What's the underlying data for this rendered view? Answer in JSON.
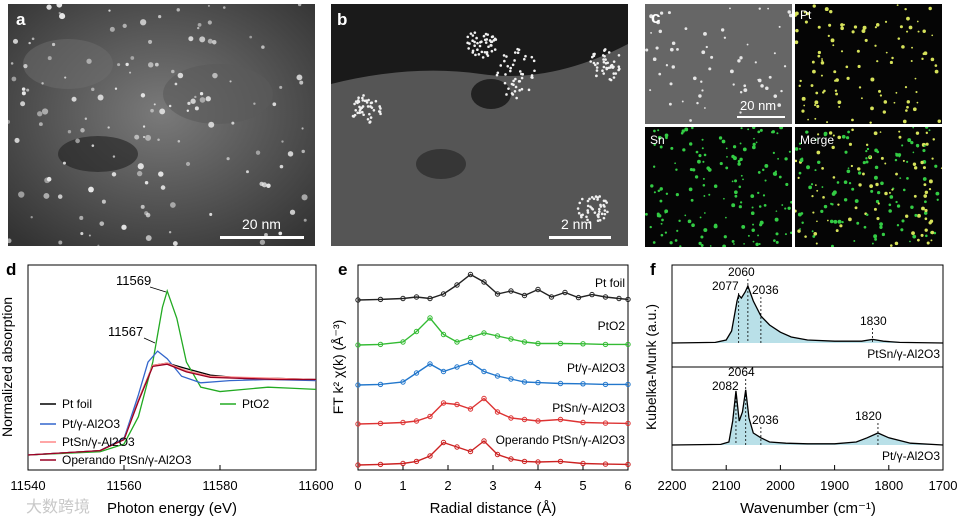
{
  "panels": {
    "a": {
      "label": "a",
      "scalebar": "20 nm"
    },
    "b": {
      "label": "b",
      "scalebar": "2 nm"
    },
    "c": {
      "label": "c",
      "scalebar": "20 nm",
      "maps": [
        "Pt",
        "Sn",
        "Merge"
      ]
    },
    "d": {
      "label": "d"
    },
    "e": {
      "label": "e"
    },
    "f": {
      "label": "f"
    }
  },
  "watermark": "大数跨境",
  "chart_data": [
    {
      "panel": "d",
      "type": "line",
      "xlabel": "Photon energy (eV)",
      "ylabel": "Normalized absorption",
      "xlim": [
        11540,
        11600
      ],
      "x_ticks": [
        "11540",
        "11560",
        "11580",
        "11600"
      ],
      "annotations": [
        "11569",
        "11567"
      ],
      "legend": [
        "Pt foil",
        "PtO2",
        "Pt/γ-Al2O3",
        "PtSn/γ-Al2O3",
        "Operando PtSn/γ-Al2O3"
      ],
      "series": [
        {
          "name": "Pt foil",
          "color": "#000000",
          "x": [
            11540,
            11555,
            11560,
            11563,
            11566,
            11569,
            11573,
            11578,
            11585,
            11592,
            11600
          ],
          "y": [
            0.0,
            0.04,
            0.15,
            0.5,
            0.82,
            0.84,
            0.79,
            0.73,
            0.7,
            0.7,
            0.69
          ]
        },
        {
          "name": "PtO2",
          "color": "#22aa22",
          "x": [
            11540,
            11555,
            11560,
            11563,
            11566,
            11568,
            11569,
            11571,
            11573,
            11576,
            11580,
            11585,
            11590,
            11595,
            11600
          ],
          "y": [
            0.0,
            0.03,
            0.1,
            0.35,
            0.85,
            1.35,
            1.5,
            1.25,
            0.85,
            0.62,
            0.58,
            0.6,
            0.62,
            0.61,
            0.6
          ]
        },
        {
          "name": "Pt/γ-Al2O3",
          "color": "#3366cc",
          "x": [
            11540,
            11555,
            11560,
            11563,
            11565,
            11567,
            11569,
            11572,
            11576,
            11582,
            11590,
            11600
          ],
          "y": [
            0.0,
            0.04,
            0.15,
            0.55,
            0.85,
            0.95,
            0.88,
            0.72,
            0.66,
            0.68,
            0.69,
            0.68
          ]
        },
        {
          "name": "PtSn/γ-Al2O3",
          "color": "#ff8888",
          "x": [
            11540,
            11555,
            11560,
            11563,
            11566,
            11569,
            11573,
            11578,
            11585,
            11592,
            11600
          ],
          "y": [
            0.0,
            0.04,
            0.14,
            0.5,
            0.82,
            0.84,
            0.77,
            0.72,
            0.71,
            0.7,
            0.69
          ]
        },
        {
          "name": "Operando PtSn/γ-Al2O3",
          "color": "#990022",
          "x": [
            11540,
            11555,
            11560,
            11563,
            11566,
            11569,
            11573,
            11578,
            11585,
            11592,
            11600
          ],
          "y": [
            0.0,
            0.04,
            0.14,
            0.49,
            0.81,
            0.83,
            0.76,
            0.71,
            0.7,
            0.69,
            0.69
          ]
        }
      ]
    },
    {
      "panel": "e",
      "type": "line",
      "xlabel": "Radial distance (Å)",
      "ylabel": "FT k² χ(k) (Å⁻³)",
      "xlim": [
        0,
        6
      ],
      "x_ticks": [
        "0",
        "1",
        "2",
        "3",
        "4",
        "5",
        "6"
      ],
      "series": [
        {
          "name": "Pt foil",
          "color": "#222222",
          "offset": 4,
          "x": [
            0,
            0.5,
            1.0,
            1.3,
            1.6,
            1.9,
            2.2,
            2.5,
            2.8,
            3.1,
            3.4,
            3.7,
            4.0,
            4.3,
            4.6,
            4.9,
            5.2,
            5.5,
            5.8,
            6.0
          ],
          "y": [
            0.0,
            0.02,
            0.05,
            0.1,
            0.05,
            0.2,
            0.5,
            0.85,
            0.6,
            0.2,
            0.3,
            0.15,
            0.35,
            0.1,
            0.25,
            0.08,
            0.18,
            0.1,
            0.05,
            0.02
          ]
        },
        {
          "name": "PtO2",
          "color": "#33bb33",
          "offset": 3,
          "x": [
            0,
            0.5,
            1.0,
            1.3,
            1.6,
            1.9,
            2.2,
            2.5,
            2.8,
            3.1,
            3.4,
            3.7,
            4.0,
            4.5,
            5.0,
            5.5,
            6.0
          ],
          "y": [
            0.0,
            0.02,
            0.1,
            0.45,
            0.9,
            0.35,
            0.1,
            0.25,
            0.4,
            0.3,
            0.2,
            0.1,
            0.05,
            0.05,
            0.04,
            0.02,
            0.02
          ]
        },
        {
          "name": "Pt/γ-Al2O3",
          "color": "#2277cc",
          "offset": 2,
          "x": [
            0,
            0.5,
            1.0,
            1.3,
            1.6,
            1.9,
            2.2,
            2.5,
            2.8,
            3.1,
            3.4,
            3.7,
            4.0,
            4.5,
            5.0,
            5.5,
            6.0
          ],
          "y": [
            0.0,
            0.02,
            0.1,
            0.4,
            0.7,
            0.45,
            0.6,
            0.75,
            0.45,
            0.3,
            0.2,
            0.1,
            0.08,
            0.05,
            0.04,
            0.02,
            0.02
          ]
        },
        {
          "name": "PtSn/γ-Al2O3",
          "color": "#dd3333",
          "offset": 1,
          "x": [
            0,
            0.5,
            1.0,
            1.3,
            1.6,
            1.9,
            2.2,
            2.5,
            2.8,
            3.1,
            3.4,
            3.7,
            4.0,
            4.5,
            5.0,
            5.5,
            6.0
          ],
          "y": [
            0.0,
            0.02,
            0.05,
            0.1,
            0.25,
            0.7,
            0.65,
            0.5,
            0.85,
            0.4,
            0.2,
            0.15,
            0.1,
            0.15,
            0.05,
            0.03,
            0.02
          ]
        },
        {
          "name": "Operando PtSn/γ-Al2O3",
          "color": "#cc2222",
          "offset": 0,
          "x": [
            0,
            0.5,
            1.0,
            1.3,
            1.6,
            1.9,
            2.2,
            2.5,
            2.8,
            3.1,
            3.4,
            3.7,
            4.0,
            4.5,
            5.0,
            5.5,
            6.0
          ],
          "y": [
            0.0,
            0.02,
            0.05,
            0.12,
            0.3,
            0.75,
            0.6,
            0.45,
            0.8,
            0.35,
            0.2,
            0.12,
            0.1,
            0.12,
            0.05,
            0.03,
            0.02
          ]
        }
      ]
    },
    {
      "panel": "f",
      "type": "line",
      "xlabel": "Wavenumber (cm⁻¹)",
      "ylabel": "Kubelka-Munk (a.u.)",
      "xlim": [
        2200,
        1700
      ],
      "x_ticks": [
        "2200",
        "2100",
        "2000",
        "1900",
        "1800",
        "1700"
      ],
      "series": [
        {
          "name": "PtSn/γ-Al2O3",
          "color": "#000000",
          "peaks": [
            "2077",
            "2060",
            "2036",
            "1830"
          ],
          "x": [
            2200,
            2120,
            2100,
            2090,
            2080,
            2077,
            2072,
            2065,
            2060,
            2050,
            2036,
            2020,
            2000,
            1980,
            1950,
            1900,
            1850,
            1830,
            1810,
            1780,
            1700
          ],
          "y": [
            0.0,
            0.01,
            0.05,
            0.2,
            0.7,
            0.8,
            0.75,
            0.85,
            0.95,
            0.7,
            0.45,
            0.3,
            0.18,
            0.1,
            0.05,
            0.03,
            0.03,
            0.06,
            0.03,
            0.01,
            0.0
          ]
        },
        {
          "name": "Pt/γ-Al2O3",
          "color": "#000000",
          "peaks": [
            "2082",
            "2064",
            "2036",
            "1820"
          ],
          "x": [
            2200,
            2110,
            2095,
            2088,
            2082,
            2076,
            2070,
            2064,
            2058,
            2050,
            2036,
            2020,
            1990,
            1950,
            1900,
            1860,
            1840,
            1820,
            1800,
            1760,
            1700
          ],
          "y": [
            0.0,
            0.01,
            0.05,
            0.4,
            0.9,
            0.4,
            0.55,
            0.92,
            0.45,
            0.2,
            0.12,
            0.05,
            0.03,
            0.02,
            0.02,
            0.05,
            0.12,
            0.2,
            0.12,
            0.03,
            0.0
          ]
        }
      ]
    }
  ]
}
